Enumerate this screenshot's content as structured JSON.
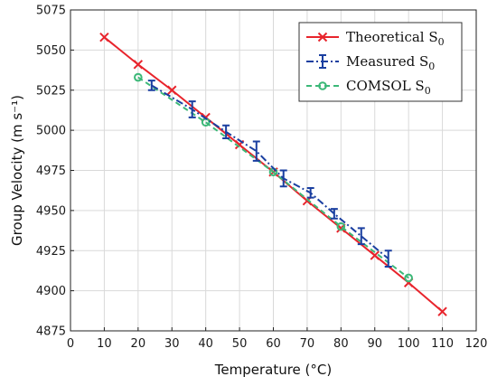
{
  "chart_data": {
    "type": "line",
    "xlabel": "Temperature (°C)",
    "ylabel": "Group Velocity (m s⁻¹)",
    "xlim": [
      0,
      120
    ],
    "ylim": [
      4875,
      5075
    ],
    "x_ticks": [
      "0",
      "10",
      "20",
      "30",
      "40",
      "50",
      "60",
      "70",
      "80",
      "90",
      "100",
      "110",
      "120"
    ],
    "y_ticks": [
      "4875",
      "4900",
      "4925",
      "4950",
      "4975",
      "5000",
      "5025",
      "5050",
      "5075"
    ],
    "grid": true,
    "legend_position": "top-right",
    "series": [
      {
        "name": "Theoretical S0",
        "color": "#e8242c",
        "line_style": "solid",
        "marker": "x",
        "x": [
          10,
          20,
          30,
          40,
          50,
          60,
          70,
          80,
          90,
          100,
          110
        ],
        "y": [
          5058,
          5041,
          5025,
          5008,
          4991,
          4974,
          4956,
          4939,
          4922,
          4905,
          4887
        ]
      },
      {
        "name": "Measured S0",
        "color": "#1a3fa0",
        "line_style": "dash-dot",
        "marker": "errorbar",
        "x": [
          24,
          36,
          46,
          55,
          63,
          71,
          78,
          86,
          94
        ],
        "y": [
          5028,
          5013,
          4999,
          4987,
          4970,
          4961,
          4948,
          4934,
          4920
        ],
        "err": [
          3,
          5,
          4,
          6,
          5,
          3,
          3,
          5,
          5
        ]
      },
      {
        "name": "COMSOL S0",
        "color": "#3cb878",
        "line_style": "dashed",
        "marker": "circle",
        "x": [
          20,
          40,
          60,
          80,
          100
        ],
        "y": [
          5033,
          5005,
          4974,
          4940,
          4908
        ]
      }
    ],
    "legend_labels": [
      {
        "main": "Theoretical S",
        "sub": "0"
      },
      {
        "main": "Measured S",
        "sub": "0"
      },
      {
        "main": "COMSOL S",
        "sub": "0"
      }
    ]
  }
}
